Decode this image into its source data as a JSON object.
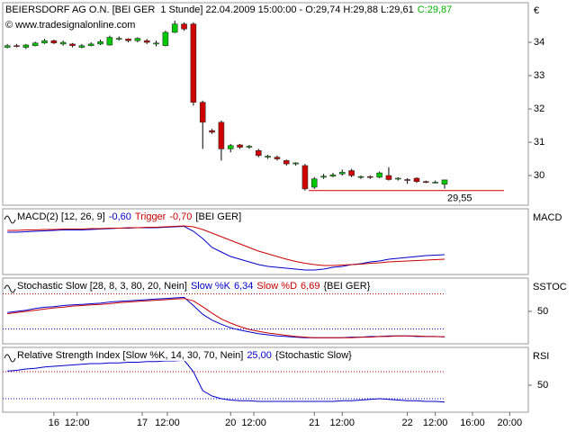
{
  "chart_data": [
    {
      "type": "candlestick",
      "title": "BEIERSDORF AG O.N. [BEI GER  1 Stunde] 22.04.2009 15:00:00 - O:29,74 H:29,88 L:29,61",
      "title_close": "C:29,87",
      "title_close_color": "#00b000",
      "watermark": "© www.tradesignalonline.com",
      "axis_unit": "€",
      "up_color": "#00c800",
      "down_color": "#d00000",
      "open": [
        33.85,
        33.9,
        33.85,
        33.9,
        33.98,
        34.05,
        33.95,
        33.95,
        33.85,
        33.9,
        33.95,
        33.92,
        34.1,
        34.1,
        34.05,
        34.05,
        33.95,
        33.9,
        34.3,
        34.55,
        34.55,
        32.2,
        31.35,
        31.6,
        30.8,
        30.92,
        30.85,
        30.75,
        30.55,
        30.55,
        30.45,
        30.35,
        30.3,
        29.65,
        29.95,
        29.98,
        30.05,
        30.15,
        29.95,
        29.97,
        29.95,
        30.0,
        29.9,
        29.88,
        29.92,
        29.82,
        29.8,
        29.74
      ],
      "high": [
        33.95,
        33.95,
        33.95,
        34.02,
        34.1,
        34.08,
        34.05,
        33.98,
        33.95,
        34.0,
        34.08,
        34.2,
        34.18,
        34.12,
        34.15,
        34.1,
        34.05,
        34.35,
        34.65,
        34.6,
        34.6,
        32.25,
        31.4,
        31.65,
        30.95,
        30.95,
        30.92,
        30.8,
        30.62,
        30.6,
        30.48,
        30.4,
        30.35,
        29.95,
        30.05,
        30.08,
        30.18,
        30.2,
        30.0,
        30.0,
        30.12,
        30.25,
        29.95,
        29.92,
        29.95,
        29.85,
        29.85,
        29.88
      ],
      "low": [
        33.82,
        33.85,
        33.8,
        33.88,
        33.95,
        33.95,
        33.9,
        33.85,
        33.82,
        33.88,
        33.92,
        33.9,
        34.05,
        34.0,
        34.0,
        33.95,
        33.88,
        33.88,
        34.28,
        34.35,
        32.1,
        30.8,
        31.25,
        30.45,
        30.7,
        30.8,
        30.8,
        30.55,
        30.5,
        30.45,
        30.3,
        30.3,
        29.55,
        29.6,
        29.9,
        29.95,
        30.0,
        29.95,
        29.9,
        29.9,
        29.92,
        29.85,
        29.85,
        29.75,
        29.78,
        29.77,
        29.78,
        29.61
      ],
      "close": [
        33.9,
        33.88,
        33.92,
        33.98,
        34.05,
        33.98,
        34.0,
        33.9,
        33.9,
        33.95,
        34.02,
        34.15,
        34.12,
        34.05,
        34.12,
        34.0,
        33.98,
        34.3,
        34.55,
        34.4,
        32.2,
        31.6,
        31.3,
        30.8,
        30.9,
        30.85,
        30.88,
        30.6,
        30.58,
        30.5,
        30.35,
        30.38,
        29.6,
        29.9,
        29.98,
        30.02,
        30.1,
        30.0,
        29.97,
        29.95,
        30.08,
        29.88,
        29.92,
        29.86,
        29.82,
        29.8,
        29.8,
        29.87
      ],
      "price_line": {
        "value": 29.55,
        "label": "29,55",
        "color": "#d00000"
      },
      "xlim": [
        -0.5,
        56
      ],
      "ylim": [
        29.11,
        35.19
      ],
      "yticks": [
        30,
        31,
        32,
        33,
        34
      ]
    },
    {
      "type": "line",
      "panel_label": "MACD",
      "header": "MACD(2) [12, 26, 9]",
      "header_suffix": "[BEI GER]",
      "xlim": [
        -0.5,
        56
      ],
      "ylim": [
        -1.04,
        0.42
      ],
      "yticks": [],
      "series": [
        {
          "color": "#0000cc",
          "last_label": "-0,60",
          "values": [
            -0.1,
            -0.1,
            -0.09,
            -0.08,
            -0.07,
            -0.06,
            -0.05,
            -0.05,
            -0.05,
            -0.04,
            -0.03,
            -0.02,
            -0.01,
            -0.01,
            0.0,
            0.0,
            0.0,
            0.01,
            0.02,
            0.03,
            -0.08,
            -0.24,
            -0.44,
            -0.54,
            -0.64,
            -0.7,
            -0.76,
            -0.82,
            -0.86,
            -0.88,
            -0.9,
            -0.92,
            -0.94,
            -0.94,
            -0.92,
            -0.88,
            -0.86,
            -0.82,
            -0.8,
            -0.76,
            -0.74,
            -0.7,
            -0.68,
            -0.66,
            -0.64,
            -0.62,
            -0.61,
            -0.6
          ]
        },
        {
          "name": "Trigger",
          "color": "#cc0000",
          "last_label": "-0,70",
          "values": [
            -0.06,
            -0.06,
            -0.05,
            -0.05,
            -0.04,
            -0.04,
            -0.03,
            -0.03,
            -0.03,
            -0.02,
            -0.02,
            -0.01,
            -0.01,
            0.0,
            0.0,
            0.01,
            0.01,
            0.02,
            0.03,
            0.04,
            0.02,
            -0.04,
            -0.12,
            -0.2,
            -0.28,
            -0.36,
            -0.44,
            -0.52,
            -0.58,
            -0.64,
            -0.7,
            -0.75,
            -0.79,
            -0.82,
            -0.84,
            -0.84,
            -0.83,
            -0.82,
            -0.81,
            -0.79,
            -0.78,
            -0.76,
            -0.75,
            -0.74,
            -0.73,
            -0.72,
            -0.71,
            -0.7
          ]
        }
      ]
    },
    {
      "type": "line",
      "panel_label": "SSTOC",
      "header": "Stochastic Slow [28, 8, 3, 80, 20, Nein]",
      "header_suffix": "{BEI GER}",
      "xlim": [
        -0.5,
        56
      ],
      "ylim": [
        -5.4,
        106.9
      ],
      "yticks": [
        50
      ],
      "hlines": [
        {
          "value": 80,
          "color": "#cc0000"
        },
        {
          "value": 20,
          "color": "#0000cc"
        }
      ],
      "series": [
        {
          "name": "Slow %K",
          "color": "#0000cc",
          "last_label": "6,34",
          "values": [
            48,
            50,
            52,
            55,
            57,
            58,
            60,
            61,
            62,
            63,
            64,
            66,
            67,
            68,
            69,
            70,
            71,
            72,
            73,
            74,
            60,
            45,
            35,
            28,
            22,
            18,
            15,
            12,
            10,
            8,
            7,
            6,
            5,
            5,
            5,
            5,
            5,
            6,
            6,
            7,
            7,
            8,
            8,
            8,
            7,
            7,
            7,
            6.34
          ]
        },
        {
          "name": "Slow %D",
          "color": "#cc0000",
          "last_label": "6,69",
          "values": [
            46,
            48,
            50,
            52,
            54,
            56,
            57,
            59,
            60,
            61,
            62,
            63,
            65,
            66,
            67,
            68,
            69,
            70,
            71,
            72,
            68,
            58,
            47,
            37,
            30,
            24,
            19,
            16,
            13,
            11,
            9,
            7,
            6,
            5,
            5,
            5,
            5,
            5,
            6,
            6,
            7,
            7,
            8,
            8,
            8,
            7,
            7,
            6.69
          ]
        }
      ]
    },
    {
      "type": "line",
      "panel_label": "RSI",
      "header": "Relative Strength Index [Slow %K, 14, 30, 70, Nein]",
      "header_suffix": "{Stochastic Slow}",
      "xlim": [
        -0.5,
        56
      ],
      "ylim": [
        10,
        106
      ],
      "yticks": [
        50
      ],
      "hlines": [
        {
          "value": 70,
          "color": "#cc0000"
        },
        {
          "value": 30,
          "color": "#0000cc"
        }
      ],
      "series": [
        {
          "color": "#0000cc",
          "last_label": "25,00",
          "values": [
            71,
            72,
            74,
            75,
            77,
            78,
            79,
            80,
            81,
            82,
            82,
            83,
            83,
            84,
            84,
            85,
            85,
            86,
            86,
            87,
            70,
            42,
            34,
            30,
            28,
            27,
            27,
            26,
            26,
            26,
            26,
            26,
            26,
            26,
            26,
            26,
            27,
            27,
            28,
            29,
            30,
            29,
            28,
            27,
            27,
            26,
            26,
            25
          ]
        }
      ],
      "xticks": [
        {
          "value": 5,
          "label": "16"
        },
        {
          "value": 7.5,
          "label": "12:00"
        },
        {
          "value": 14.5,
          "label": "17"
        },
        {
          "value": 17.2,
          "label": "12:00"
        },
        {
          "value": 24,
          "label": "20"
        },
        {
          "value": 26.5,
          "label": "12:00"
        },
        {
          "value": 33,
          "label": "21"
        },
        {
          "value": 36,
          "label": "12:00"
        },
        {
          "value": 43,
          "label": "22"
        },
        {
          "value": 46,
          "label": "12:00"
        },
        {
          "value": 50,
          "label": "16:00"
        },
        {
          "value": 54,
          "label": "20:00"
        }
      ]
    }
  ]
}
